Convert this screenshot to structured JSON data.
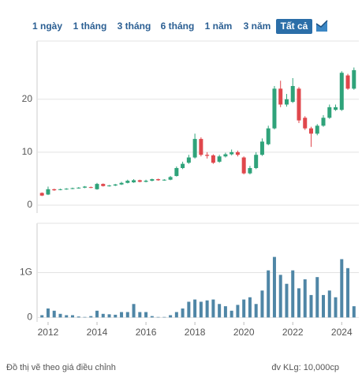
{
  "range_buttons": [
    "1 ngày",
    "1 tháng",
    "3 tháng",
    "6 tháng",
    "1 năm",
    "3 năm",
    "Tất cả"
  ],
  "active_button": 6,
  "footer": {
    "note": "Đồ thị vẽ theo giá điều chỉnh",
    "unit": "đv KLg: 10,000cp"
  },
  "chart_data": [
    {
      "type": "candlestick",
      "up_color": "#2fa37a",
      "down_color": "#e0474c",
      "grid": true,
      "xlim": [
        2011.55,
        2024.7
      ],
      "ylim": [
        -1.5,
        31
      ],
      "yticks": [
        0,
        10,
        20
      ],
      "x": [
        2011.75,
        2012.0,
        2012.25,
        2012.5,
        2012.75,
        2013.0,
        2013.25,
        2013.5,
        2013.75,
        2014.0,
        2014.25,
        2014.5,
        2014.75,
        2015.0,
        2015.25,
        2015.5,
        2015.75,
        2016.0,
        2016.25,
        2016.5,
        2016.75,
        2017.0,
        2017.25,
        2017.5,
        2017.75,
        2018.0,
        2018.25,
        2018.5,
        2018.75,
        2019.0,
        2019.25,
        2019.5,
        2019.75,
        2020.0,
        2020.25,
        2020.5,
        2020.75,
        2021.0,
        2021.25,
        2021.5,
        2021.75,
        2022.0,
        2022.25,
        2022.5,
        2022.75,
        2023.0,
        2023.25,
        2023.5,
        2023.75,
        2024.0,
        2024.25,
        2024.5
      ],
      "open": [
        2.3,
        2.0,
        3.0,
        2.9,
        3.0,
        3.1,
        3.2,
        3.3,
        3.4,
        3.0,
        4.0,
        3.6,
        3.7,
        3.9,
        4.2,
        4.3,
        4.7,
        4.4,
        4.6,
        4.9,
        4.7,
        4.8,
        5.5,
        7.0,
        8.0,
        9.0,
        12.5,
        9.5,
        9.4,
        8.2,
        9.2,
        9.6,
        10.0,
        9.0,
        6.0,
        7.0,
        9.5,
        11.5,
        14.5,
        22.0,
        19.0,
        19.5,
        22.0,
        16.5,
        14.5,
        13.5,
        15.0,
        16.5,
        18.0,
        18.0,
        24.5,
        22.0
      ],
      "high": [
        2.4,
        3.5,
        3.1,
        3.1,
        3.2,
        3.3,
        3.4,
        3.6,
        3.5,
        4.2,
        4.1,
        3.8,
        4.0,
        4.4,
        4.8,
        4.9,
        4.8,
        4.8,
        5.0,
        5.0,
        4.9,
        5.5,
        7.3,
        8.2,
        9.5,
        13.5,
        12.8,
        10.0,
        9.6,
        9.5,
        9.9,
        10.5,
        10.3,
        9.2,
        7.4,
        10.0,
        12.6,
        15.0,
        22.5,
        23.5,
        21.0,
        24.0,
        22.3,
        16.8,
        14.8,
        15.3,
        17.0,
        19.0,
        19.0,
        25.3,
        24.8,
        26.0
      ],
      "low": [
        1.7,
        1.9,
        2.7,
        2.8,
        2.9,
        3.0,
        3.1,
        3.2,
        3.2,
        2.9,
        3.5,
        3.5,
        3.6,
        3.8,
        4.1,
        4.2,
        4.3,
        4.3,
        4.5,
        4.6,
        4.6,
        4.7,
        5.4,
        6.8,
        7.8,
        8.8,
        9.2,
        8.8,
        7.8,
        8.0,
        9.0,
        9.4,
        9.2,
        5.8,
        5.8,
        6.8,
        9.3,
        11.3,
        14.3,
        18.5,
        18.6,
        19.3,
        15.5,
        14.2,
        11.0,
        13.2,
        14.8,
        16.3,
        17.8,
        17.8,
        21.8,
        21.8
      ],
      "close": [
        1.8,
        3.0,
        2.8,
        3.0,
        3.1,
        3.2,
        3.3,
        3.5,
        3.3,
        4.0,
        3.6,
        3.7,
        3.9,
        4.2,
        4.6,
        4.7,
        4.4,
        4.6,
        4.9,
        4.7,
        4.8,
        5.3,
        7.0,
        7.8,
        9.0,
        12.5,
        9.5,
        9.3,
        8.0,
        9.2,
        9.6,
        10.0,
        9.5,
        6.0,
        7.0,
        9.5,
        12.0,
        14.5,
        22.0,
        19.0,
        20.0,
        22.5,
        16.0,
        14.5,
        13.5,
        15.0,
        16.5,
        18.5,
        18.5,
        25.0,
        22.0,
        25.5
      ]
    },
    {
      "type": "bar",
      "color": "#4f86a6",
      "grid": true,
      "xlim": [
        2011.55,
        2024.7
      ],
      "xticks": [
        2012,
        2014,
        2016,
        2018,
        2020,
        2022,
        2024
      ],
      "ylim": [
        -0.1,
        2.1
      ],
      "yticks": [
        0,
        {
          "value": 1,
          "label": "1G"
        }
      ],
      "x": [
        2011.75,
        2012.0,
        2012.25,
        2012.5,
        2012.75,
        2013.0,
        2013.25,
        2013.5,
        2013.75,
        2014.0,
        2014.25,
        2014.5,
        2014.75,
        2015.0,
        2015.25,
        2015.5,
        2015.75,
        2016.0,
        2016.25,
        2016.5,
        2016.75,
        2017.0,
        2017.25,
        2017.5,
        2017.75,
        2018.0,
        2018.25,
        2018.5,
        2018.75,
        2019.0,
        2019.25,
        2019.5,
        2019.75,
        2020.0,
        2020.25,
        2020.5,
        2020.75,
        2021.0,
        2021.25,
        2021.5,
        2021.75,
        2022.0,
        2022.25,
        2022.5,
        2022.75,
        2023.0,
        2023.25,
        2023.5,
        2023.75,
        2024.0,
        2024.25,
        2024.5
      ],
      "values": [
        0.05,
        0.2,
        0.15,
        0.08,
        0.05,
        0.05,
        0.02,
        0.01,
        0.03,
        0.15,
        0.08,
        0.07,
        0.06,
        0.12,
        0.12,
        0.3,
        0.12,
        0.12,
        0.03,
        0.01,
        0.01,
        0.05,
        0.12,
        0.2,
        0.35,
        0.4,
        0.35,
        0.38,
        0.4,
        0.3,
        0.25,
        0.15,
        0.28,
        0.4,
        0.45,
        0.3,
        0.6,
        1.05,
        1.35,
        0.95,
        0.75,
        1.05,
        0.65,
        0.85,
        0.5,
        0.9,
        0.5,
        0.6,
        0.45,
        1.3,
        1.1,
        0.25
      ]
    }
  ]
}
